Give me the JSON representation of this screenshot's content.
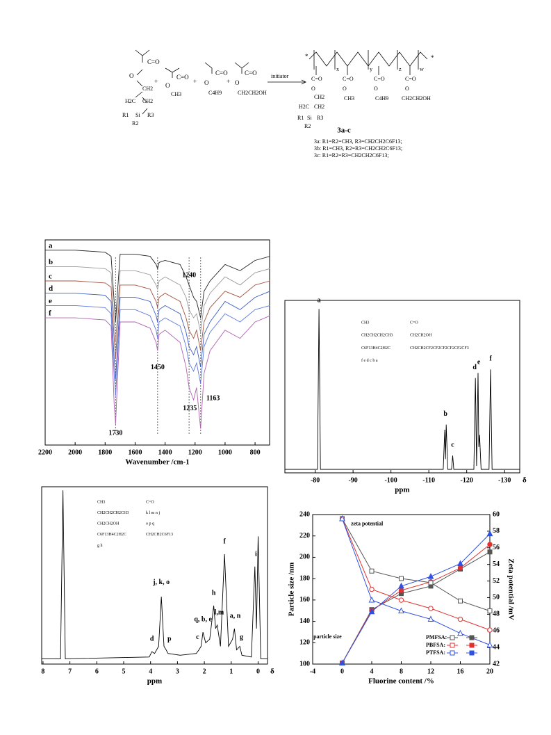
{
  "scheme": {
    "texts": [
      "C=O",
      "O",
      "CH2",
      "H2C",
      "Si",
      "R1",
      "R2",
      "R3",
      "+",
      "CH3",
      "C4H9",
      "CH2CH2OH",
      "initiator",
      "x",
      "y",
      "z",
      "w",
      "3a-c",
      "3a: R1=R2=CH3, R3=CH2CH2C6F13;",
      "3b: R1=CH3, R2=R3=CH2CH2C6F13;",
      "3c: R1=R2=R3=CH2CH2C6F13;",
      "*"
    ]
  },
  "chart_data": [
    {
      "type": "line",
      "xlabel": "Wavenumber /cm-1",
      "xlim": [
        2200,
        703
      ],
      "xticks": [
        2200,
        2000,
        1800,
        1600,
        1400,
        1200,
        1000,
        800
      ],
      "ylim": [
        0,
        100
      ],
      "x": [
        2200,
        2000,
        1800,
        1760,
        1740,
        1730,
        1720,
        1700,
        1600,
        1500,
        1460,
        1450,
        1440,
        1400,
        1300,
        1260,
        1240,
        1210,
        1190,
        1163,
        1140,
        1100,
        1000,
        900,
        800,
        700
      ],
      "guides": [
        1730,
        1450,
        1240,
        1163
      ],
      "series": [
        {
          "name": "a",
          "color": "#222222",
          "values": [
            95,
            95,
            94,
            92,
            70,
            60,
            72,
            93,
            93,
            92,
            88,
            86,
            89,
            90,
            88,
            82,
            78,
            72,
            70,
            62,
            75,
            80,
            88,
            85,
            90,
            92
          ]
        },
        {
          "name": "b",
          "color": "#999999",
          "values": [
            87,
            87,
            86,
            84,
            60,
            50,
            62,
            85,
            85,
            83,
            78,
            76,
            80,
            82,
            78,
            72,
            66,
            62,
            64,
            55,
            68,
            74,
            82,
            78,
            84,
            86
          ]
        },
        {
          "name": "c",
          "color": "#a0523d",
          "values": [
            80,
            80,
            79,
            77,
            52,
            42,
            55,
            78,
            78,
            76,
            70,
            67,
            72,
            74,
            70,
            62,
            56,
            52,
            56,
            46,
            60,
            67,
            75,
            72,
            78,
            80
          ]
        },
        {
          "name": "d",
          "color": "#3d5cc0",
          "values": [
            74,
            74,
            73,
            70,
            42,
            32,
            45,
            72,
            72,
            70,
            63,
            60,
            66,
            68,
            64,
            55,
            48,
            44,
            48,
            38,
            54,
            60,
            70,
            66,
            72,
            75
          ]
        },
        {
          "name": "e",
          "color": "#5a78e0",
          "values": [
            68,
            68,
            67,
            64,
            34,
            24,
            38,
            66,
            66,
            63,
            56,
            52,
            60,
            62,
            58,
            48,
            40,
            36,
            40,
            30,
            48,
            55,
            64,
            60,
            66,
            68
          ]
        },
        {
          "name": "f",
          "color": "#b060b0",
          "values": [
            62,
            62,
            61,
            58,
            20,
            10,
            28,
            60,
            60,
            57,
            50,
            46,
            54,
            56,
            50,
            38,
            28,
            22,
            28,
            8,
            35,
            46,
            56,
            52,
            60,
            63
          ]
        }
      ],
      "annotations": [
        {
          "text": "1240",
          "x": 1240,
          "y": 81
        },
        {
          "text": "1450",
          "x": 1450,
          "y": 36
        },
        {
          "text": "1730",
          "x": 1730,
          "y": 4
        },
        {
          "text": "1235",
          "x": 1235,
          "y": 16
        },
        {
          "text": "1163",
          "x": 1080,
          "y": 21
        }
      ]
    },
    {
      "type": "line",
      "xlabel": "ppm",
      "x_symbol": "δ",
      "xlim": [
        -72,
        -134
      ],
      "xticks": [
        -80,
        -90,
        -100,
        -110,
        -120,
        -130
      ],
      "ylim": [
        0,
        100
      ],
      "x": [
        -72,
        -80.6,
        -81,
        -81.4,
        -113.8,
        -114.2,
        -114.4,
        -114.6,
        -115,
        -116,
        -116.3,
        -116.6,
        -121.9,
        -122.3,
        -122.6,
        -123,
        -123.2,
        -123.4,
        -123.8,
        -125.9,
        -126.3,
        -126.7,
        -134
      ],
      "series": [
        {
          "color": "#000000",
          "values": [
            2,
            2,
            95,
            2,
            2,
            25,
            8,
            28,
            2,
            2,
            10,
            2,
            2,
            55,
            4,
            58,
            15,
            22,
            2,
            2,
            60,
            2,
            2
          ]
        }
      ],
      "annotations": [
        {
          "text": "a",
          "x": -81,
          "y": 98
        },
        {
          "text": "b",
          "x": -114.4,
          "y": 32
        },
        {
          "text": "c",
          "x": -116.3,
          "y": 14
        },
        {
          "text": "d",
          "x": -122.1,
          "y": 59
        },
        {
          "text": "e",
          "x": -123.2,
          "y": 62
        },
        {
          "text": "f",
          "x": -126.3,
          "y": 64
        }
      ],
      "inset": [
        "CH3",
        "C=O",
        "CH2CH2CH2CH3",
        "CH2CH2OH",
        "C6F13H4C2H2C",
        "CH2CH2CF2CF2CF2CF2CF2CF3",
        "f  e  d  c  b  a"
      ]
    },
    {
      "type": "line",
      "xlabel": "ppm",
      "x_symbol": "δ",
      "xlim": [
        8.05,
        -0.35
      ],
      "xticks": [
        8,
        7,
        6,
        5,
        4,
        3,
        2,
        1,
        0
      ],
      "ylim": [
        0,
        100
      ],
      "x": [
        8.05,
        7.35,
        7.26,
        7.17,
        4.05,
        3.95,
        3.85,
        3.7,
        3.6,
        3.5,
        3.42,
        3.35,
        2.9,
        2.3,
        2.2,
        2.12,
        2.05,
        1.95,
        1.8,
        1.65,
        1.58,
        1.52,
        1.4,
        1.25,
        1.1,
        0.95,
        0.88,
        0.8,
        0.68,
        0.6,
        0.25,
        0.12,
        0.06,
        0.0,
        -0.1,
        -0.35
      ],
      "series": [
        {
          "color": "#000000",
          "values": [
            3,
            3,
            98,
            3,
            4,
            7,
            6,
            10,
            38,
            10,
            8,
            6,
            5,
            6,
            8,
            10,
            18,
            12,
            14,
            33,
            20,
            22,
            10,
            62,
            10,
            14,
            20,
            8,
            10,
            5,
            4,
            55,
            20,
            72,
            3,
            3
          ]
        }
      ],
      "annotations": [
        {
          "text": "d",
          "x": 3.95,
          "y": 12
        },
        {
          "text": "j, k, o",
          "x": 3.6,
          "y": 44
        },
        {
          "text": "p",
          "x": 3.3,
          "y": 12
        },
        {
          "text": "c",
          "x": 2.25,
          "y": 13
        },
        {
          "text": "q, b, e",
          "x": 2.05,
          "y": 23
        },
        {
          "text": "h",
          "x": 1.65,
          "y": 38
        },
        {
          "text": "l,m",
          "x": 1.45,
          "y": 27
        },
        {
          "text": "f",
          "x": 1.25,
          "y": 67
        },
        {
          "text": "a, n",
          "x": 0.85,
          "y": 25
        },
        {
          "text": "g",
          "x": 0.62,
          "y": 13
        },
        {
          "text": "i",
          "x": 0.08,
          "y": 60
        }
      ],
      "inset": [
        "CH3",
        "C=O",
        "CH2CH2CH2CH3",
        "k  l  m  n  j",
        "CH2CH2OH",
        "o  p  q",
        "C6F13H4C2H2C",
        "CH2CH2C6F13",
        "g  h"
      ]
    },
    {
      "type": "line",
      "xlabel": "Fluorine content /%",
      "ylabel": "Particle size /nm",
      "y2label": "Zeta potential /mV",
      "x": [
        0,
        4,
        8,
        12,
        16,
        20
      ],
      "xlim": [
        -4,
        20
      ],
      "xticks": [
        -4,
        0,
        4,
        8,
        12,
        16,
        20
      ],
      "ylim": [
        100,
        240
      ],
      "yticks": [
        100,
        120,
        140,
        160,
        180,
        200,
        220,
        240
      ],
      "y2lim": [
        42,
        60
      ],
      "y2ticks": [
        42,
        44,
        46,
        48,
        50,
        52,
        54,
        56,
        58,
        60
      ],
      "series": [
        {
          "name": "PMFSA:",
          "color": "#555555",
          "marker": "square",
          "filled": true,
          "values": [
            101,
            151,
            166,
            173,
            189,
            205
          ]
        },
        {
          "name": "PBFSA:",
          "color": "#e03030",
          "marker": "circle",
          "filled": true,
          "values": [
            101,
            150,
            169,
            177,
            190,
            212
          ]
        },
        {
          "name": "PTFSA:",
          "color": "#3050e0",
          "marker": "triangle",
          "filled": true,
          "values": [
            101,
            149,
            173,
            182,
            194,
            222
          ]
        },
        {
          "color": "#555555",
          "marker": "square",
          "filled": false,
          "axis": "y2",
          "values": [
            59.5,
            53.2,
            52.3,
            51.8,
            49.6,
            48.4
          ]
        },
        {
          "color": "#e03030",
          "marker": "circle",
          "filled": false,
          "axis": "y2",
          "values": [
            59.5,
            51.0,
            49.7,
            48.7,
            47.4,
            46.1
          ]
        },
        {
          "color": "#3050e0",
          "marker": "triangle",
          "filled": false,
          "axis": "y2",
          "values": [
            59.5,
            49.7,
            48.4,
            47.4,
            45.7,
            44.3
          ]
        }
      ],
      "annotations": [
        {
          "text": "zeta potential",
          "x": 1.2,
          "y": 228
        },
        {
          "text": "particle size",
          "x": -3.9,
          "y": 122
        }
      ]
    }
  ]
}
